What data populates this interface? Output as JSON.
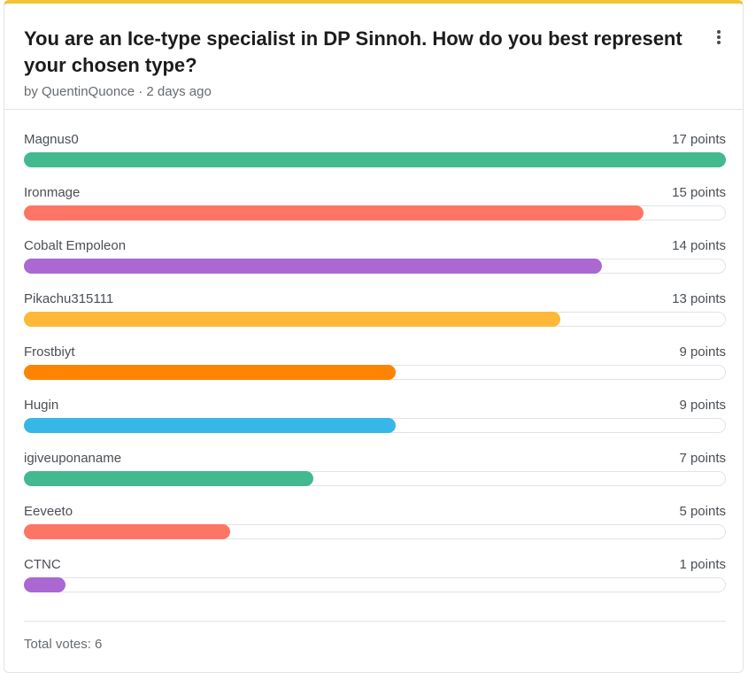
{
  "poll": {
    "title": "You are an Ice-type specialist in DP Sinnoh. How do you best represent your chosen type?",
    "meta": "by QuentinQuonce · 2 days ago",
    "total_votes": "Total votes: 6",
    "max_points": 17,
    "results": [
      {
        "name": "Magnus0",
        "points": 17,
        "points_label": "17 points",
        "color": "#43b98f"
      },
      {
        "name": "Ironmage",
        "points": 15,
        "points_label": "15 points",
        "color": "#ff7565"
      },
      {
        "name": "Cobalt Empoleon",
        "points": 14,
        "points_label": "14 points",
        "color": "#ab67d2"
      },
      {
        "name": "Pikachu315111",
        "points": 13,
        "points_label": "13 points",
        "color": "#fdb937"
      },
      {
        "name": "Frostbiyt",
        "points": 9,
        "points_label": "9 points",
        "color": "#fd8401"
      },
      {
        "name": "Hugin",
        "points": 9,
        "points_label": "9 points",
        "color": "#37b6e8"
      },
      {
        "name": "igiveuponaname",
        "points": 7,
        "points_label": "7 points",
        "color": "#43b98f"
      },
      {
        "name": "Eeveeto",
        "points": 5,
        "points_label": "5 points",
        "color": "#ff7565"
      },
      {
        "name": "CTNC",
        "points": 1,
        "points_label": "1 points",
        "color": "#ab67d2"
      }
    ]
  },
  "icons": {
    "menu": "more-vertical-icon"
  }
}
